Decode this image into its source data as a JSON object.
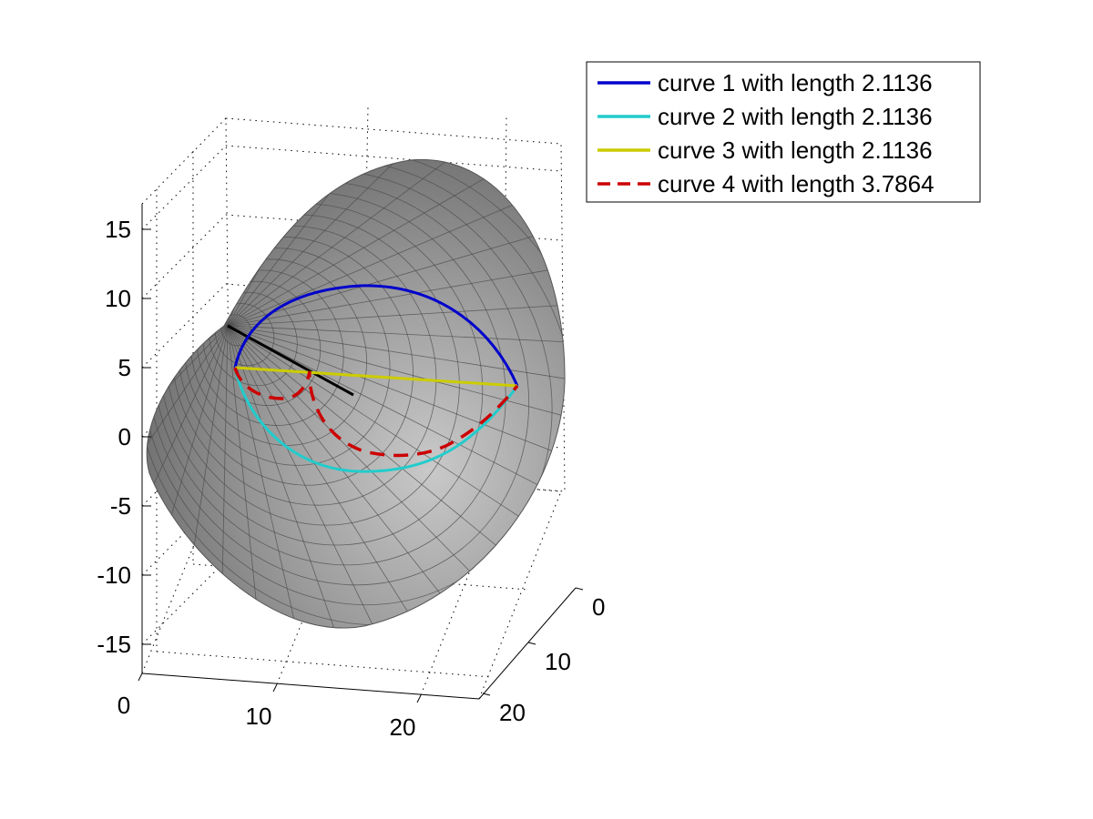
{
  "chart_data": {
    "type": "surface3d",
    "title": "",
    "xlabel": "",
    "ylabel": "",
    "zlabel": "",
    "x_axis": {
      "ticks": [
        "0",
        "10",
        "20"
      ]
    },
    "y_axis": {
      "ticks": [
        "0",
        "10",
        "20"
      ]
    },
    "z_axis": {
      "ticks": [
        "15",
        "10",
        "5",
        "0",
        "-5",
        "-10",
        "-15"
      ]
    },
    "grid": true,
    "legend_position": "top-right",
    "surface": {
      "shape": "cone",
      "color": "#8c8c8c",
      "edge_color": "#4a4a4a"
    },
    "axis_segment": {
      "color": "#000000"
    },
    "series": [
      {
        "name": "curve 1 with length 2.1136",
        "color": "#0000cc",
        "style": "solid"
      },
      {
        "name": "curve 2 with length 2.1136",
        "color": "#22cccc",
        "style": "solid"
      },
      {
        "name": "curve 3 with length 2.1136",
        "color": "#cccc00",
        "style": "solid"
      },
      {
        "name": "curve 4 with length 3.7864",
        "color": "#cc0000",
        "style": "dashed"
      }
    ]
  }
}
